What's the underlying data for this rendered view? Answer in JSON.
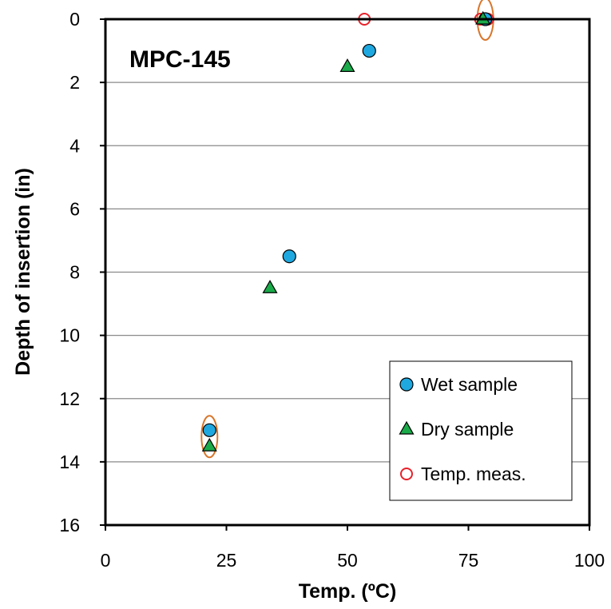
{
  "chart_data": {
    "type": "scatter",
    "xlabel": "Temp. (ºC)",
    "ylabel": "Depth of insertion (in)",
    "xlim": [
      0,
      100
    ],
    "ylim": [
      0,
      16
    ],
    "y_inverted": true,
    "x_ticks": [
      0,
      25,
      50,
      75,
      100
    ],
    "y_ticks": [
      0,
      2,
      4,
      6,
      8,
      10,
      12,
      14,
      16
    ],
    "grid": "horizontal",
    "annotation": "MPC-145",
    "legend_position": "bottom-right",
    "series": [
      {
        "name": "Wet sample",
        "marker": "circle",
        "color": "#1fa8e0",
        "points": [
          [
            78.5,
            0
          ],
          [
            54.5,
            1
          ],
          [
            38,
            7.5
          ],
          [
            21.5,
            13
          ]
        ]
      },
      {
        "name": "Dry sample",
        "marker": "triangle",
        "color": "#1aaa4a",
        "points": [
          [
            78,
            0
          ],
          [
            50,
            1.5
          ],
          [
            34,
            8.5
          ],
          [
            21.5,
            13.5
          ]
        ]
      },
      {
        "name": "Temp. meas.",
        "marker": "open-circle",
        "color": "#e8212a",
        "points": [
          [
            53.5,
            0
          ],
          [
            77.5,
            0
          ],
          [
            79,
            0
          ]
        ]
      }
    ],
    "highlights": {
      "color": "#d9762b",
      "centers": [
        [
          78.5,
          0
        ],
        [
          21.5,
          13.2
        ]
      ]
    }
  }
}
